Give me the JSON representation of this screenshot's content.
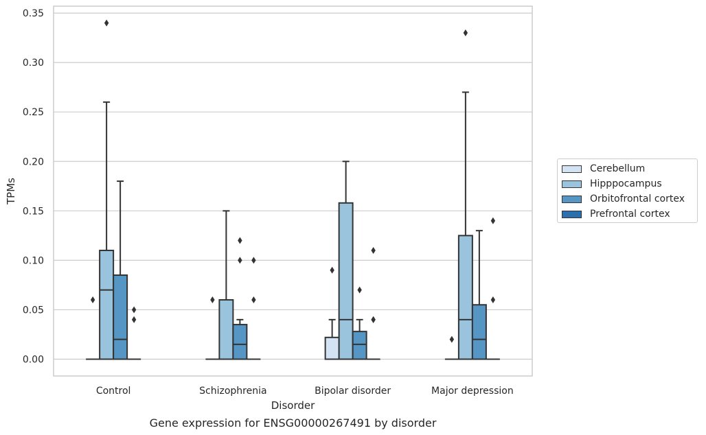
{
  "chart_data": {
    "type": "box",
    "caption": "Gene expression for ENSG00000267491 by disorder",
    "xlabel": "Disorder",
    "ylabel": "TPMs",
    "ylim": [
      -0.017,
      0.357
    ],
    "yticks": [
      "0.00",
      "0.05",
      "0.10",
      "0.15",
      "0.20",
      "0.25",
      "0.30",
      "0.35"
    ],
    "ytick_values": [
      0,
      0.05,
      0.1,
      0.15,
      0.2,
      0.25,
      0.3,
      0.35
    ],
    "grid": true,
    "legend_position": "right",
    "categories": [
      "Control",
      "Schizophrenia",
      "Bipolar disorder",
      "Major depression"
    ],
    "series": [
      {
        "name": "Cerebellum",
        "color": "#d3e3f3",
        "boxes": [
          {
            "q1": 0,
            "median": 0,
            "q3": 0,
            "whisker_low": 0,
            "whisker_high": 0,
            "outliers": [
              0.06
            ]
          },
          {
            "q1": 0,
            "median": 0,
            "q3": 0,
            "whisker_low": 0,
            "whisker_high": 0,
            "outliers": [
              0.06
            ]
          },
          {
            "q1": 0,
            "median": 0,
            "q3": 0.022,
            "whisker_low": 0,
            "whisker_high": 0.04,
            "outliers": [
              0.09
            ]
          },
          {
            "q1": 0,
            "median": 0,
            "q3": 0,
            "whisker_low": 0,
            "whisker_high": 0,
            "outliers": [
              0.02
            ]
          }
        ]
      },
      {
        "name": "Hipppocampus",
        "color": "#9ac4de",
        "boxes": [
          {
            "q1": 0,
            "median": 0.07,
            "q3": 0.11,
            "whisker_low": 0,
            "whisker_high": 0.26,
            "outliers": [
              0.34
            ]
          },
          {
            "q1": 0,
            "median": 0,
            "q3": 0.06,
            "whisker_low": 0,
            "whisker_high": 0.15,
            "outliers": []
          },
          {
            "q1": 0,
            "median": 0.04,
            "q3": 0.158,
            "whisker_low": 0,
            "whisker_high": 0.2,
            "outliers": []
          },
          {
            "q1": 0,
            "median": 0.04,
            "q3": 0.125,
            "whisker_low": 0,
            "whisker_high": 0.27,
            "outliers": [
              0.33
            ]
          }
        ]
      },
      {
        "name": "Orbitofrontal cortex",
        "color": "#5596c4",
        "boxes": [
          {
            "q1": 0,
            "median": 0.02,
            "q3": 0.085,
            "whisker_low": 0,
            "whisker_high": 0.18,
            "outliers": []
          },
          {
            "q1": 0,
            "median": 0.015,
            "q3": 0.035,
            "whisker_low": 0,
            "whisker_high": 0.04,
            "outliers": [
              0.1,
              0.12
            ]
          },
          {
            "q1": 0,
            "median": 0.015,
            "q3": 0.028,
            "whisker_low": 0,
            "whisker_high": 0.04,
            "outliers": [
              0.07
            ]
          },
          {
            "q1": 0,
            "median": 0.02,
            "q3": 0.055,
            "whisker_low": 0,
            "whisker_high": 0.13,
            "outliers": []
          }
        ]
      },
      {
        "name": "Prefrontal cortex",
        "color": "#2b6fac",
        "boxes": [
          {
            "q1": 0,
            "median": 0,
            "q3": 0,
            "whisker_low": 0,
            "whisker_high": 0,
            "outliers": [
              0.04,
              0.05
            ]
          },
          {
            "q1": 0,
            "median": 0,
            "q3": 0,
            "whisker_low": 0,
            "whisker_high": 0,
            "outliers": [
              0.06,
              0.1
            ]
          },
          {
            "q1": 0,
            "median": 0,
            "q3": 0,
            "whisker_low": 0,
            "whisker_high": 0,
            "outliers": [
              0.04,
              0.04,
              0.11
            ]
          },
          {
            "q1": 0,
            "median": 0,
            "q3": 0,
            "whisker_low": 0,
            "whisker_high": 0,
            "outliers": [
              0.06,
              0.14
            ]
          }
        ]
      }
    ],
    "colors": {
      "grid": "#cccccc",
      "spine": "#cccccc",
      "line": "#333333",
      "text": "#262626"
    }
  }
}
